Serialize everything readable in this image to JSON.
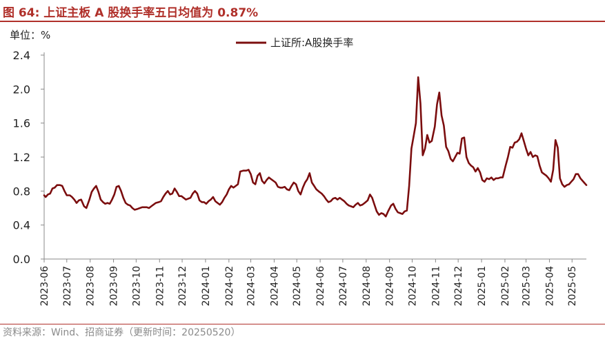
{
  "figure": {
    "title": "图 64:  上证主板 A 股换手率五日均值为 0.87%",
    "unit": "单位：%",
    "source": "资料来源：Wind、招商证券（更新时间：20250520）",
    "line_color": "#7b0d0e",
    "accent_color": "#b0302a"
  },
  "chart_data": {
    "type": "line",
    "title": "",
    "xlabel": "",
    "ylabel": "",
    "ylim": [
      0,
      2.4
    ],
    "yticks": [
      "0.0",
      "0.4",
      "0.8",
      "1.2",
      "1.6",
      "2.0",
      "2.4"
    ],
    "ytick_values": [
      0,
      0.4,
      0.8,
      1.2,
      1.6,
      2.0,
      2.4
    ],
    "xticks": [
      "2023-06",
      "2023-07",
      "2023-08",
      "2023-09",
      "2023-10",
      "2023-11",
      "2023-12",
      "2024-01",
      "2024-02",
      "2024-03",
      "2024-04",
      "2024-05",
      "2024-06",
      "2024-07",
      "2024-08",
      "2024-09",
      "2024-10",
      "2024-11",
      "2024-12",
      "2025-01",
      "2025-02",
      "2025-03",
      "2025-04",
      "2025-05"
    ],
    "xlim": [
      "2023-06-01",
      "2025-05-20"
    ],
    "grid": false,
    "legend_position": "top-center",
    "series": [
      {
        "name": "上证所:A股换手率",
        "points": [
          [
            "2023-06-01",
            0.75
          ],
          [
            "2023-06-03",
            0.73
          ],
          [
            "2023-06-06",
            0.76
          ],
          [
            "2023-06-09",
            0.77
          ],
          [
            "2023-06-12",
            0.83
          ],
          [
            "2023-06-15",
            0.84
          ],
          [
            "2023-06-18",
            0.87
          ],
          [
            "2023-06-22",
            0.87
          ],
          [
            "2023-06-25",
            0.86
          ],
          [
            "2023-06-28",
            0.8
          ],
          [
            "2023-07-01",
            0.75
          ],
          [
            "2023-07-05",
            0.75
          ],
          [
            "2023-07-08",
            0.73
          ],
          [
            "2023-07-11",
            0.7
          ],
          [
            "2023-07-14",
            0.66
          ],
          [
            "2023-07-17",
            0.69
          ],
          [
            "2023-07-20",
            0.7
          ],
          [
            "2023-07-24",
            0.62
          ],
          [
            "2023-07-27",
            0.6
          ],
          [
            "2023-07-31",
            0.7
          ],
          [
            "2023-08-03",
            0.79
          ],
          [
            "2023-08-06",
            0.83
          ],
          [
            "2023-08-09",
            0.86
          ],
          [
            "2023-08-12",
            0.79
          ],
          [
            "2023-08-15",
            0.7
          ],
          [
            "2023-08-18",
            0.67
          ],
          [
            "2023-08-21",
            0.65
          ],
          [
            "2023-08-24",
            0.66
          ],
          [
            "2023-08-27",
            0.65
          ],
          [
            "2023-08-30",
            0.7
          ],
          [
            "2023-09-02",
            0.76
          ],
          [
            "2023-09-05",
            0.85
          ],
          [
            "2023-09-08",
            0.86
          ],
          [
            "2023-09-11",
            0.8
          ],
          [
            "2023-09-14",
            0.72
          ],
          [
            "2023-09-17",
            0.66
          ],
          [
            "2023-09-20",
            0.64
          ],
          [
            "2023-09-23",
            0.63
          ],
          [
            "2023-09-26",
            0.6
          ],
          [
            "2023-09-29",
            0.58
          ],
          [
            "2023-10-03",
            0.59
          ],
          [
            "2023-10-06",
            0.6
          ],
          [
            "2023-10-09",
            0.61
          ],
          [
            "2023-10-12",
            0.61
          ],
          [
            "2023-10-15",
            0.61
          ],
          [
            "2023-10-18",
            0.6
          ],
          [
            "2023-10-21",
            0.62
          ],
          [
            "2023-10-24",
            0.64
          ],
          [
            "2023-10-27",
            0.66
          ],
          [
            "2023-10-31",
            0.67
          ],
          [
            "2023-11-03",
            0.68
          ],
          [
            "2023-11-06",
            0.73
          ],
          [
            "2023-11-09",
            0.77
          ],
          [
            "2023-11-12",
            0.8
          ],
          [
            "2023-11-15",
            0.76
          ],
          [
            "2023-11-18",
            0.77
          ],
          [
            "2023-11-21",
            0.83
          ],
          [
            "2023-11-24",
            0.79
          ],
          [
            "2023-11-27",
            0.74
          ],
          [
            "2023-11-30",
            0.74
          ],
          [
            "2023-12-03",
            0.72
          ],
          [
            "2023-12-06",
            0.7
          ],
          [
            "2023-12-09",
            0.71
          ],
          [
            "2023-12-12",
            0.72
          ],
          [
            "2023-12-15",
            0.77
          ],
          [
            "2023-12-18",
            0.8
          ],
          [
            "2023-12-21",
            0.77
          ],
          [
            "2023-12-24",
            0.69
          ],
          [
            "2023-12-27",
            0.67
          ],
          [
            "2023-12-30",
            0.67
          ],
          [
            "2024-01-02",
            0.65
          ],
          [
            "2024-01-05",
            0.68
          ],
          [
            "2024-01-08",
            0.7
          ],
          [
            "2024-01-11",
            0.73
          ],
          [
            "2024-01-14",
            0.68
          ],
          [
            "2024-01-17",
            0.66
          ],
          [
            "2024-01-20",
            0.64
          ],
          [
            "2024-01-23",
            0.67
          ],
          [
            "2024-01-26",
            0.72
          ],
          [
            "2024-01-29",
            0.76
          ],
          [
            "2024-02-01",
            0.82
          ],
          [
            "2024-02-04",
            0.86
          ],
          [
            "2024-02-07",
            0.84
          ],
          [
            "2024-02-10",
            0.86
          ],
          [
            "2024-02-13",
            0.88
          ],
          [
            "2024-02-16",
            1.03
          ],
          [
            "2024-02-20",
            1.04
          ],
          [
            "2024-02-24",
            1.04
          ],
          [
            "2024-02-27",
            1.05
          ],
          [
            "2024-03-01",
            1.0
          ],
          [
            "2024-03-04",
            0.9
          ],
          [
            "2024-03-07",
            0.88
          ],
          [
            "2024-03-10",
            0.98
          ],
          [
            "2024-03-13",
            1.01
          ],
          [
            "2024-03-16",
            0.92
          ],
          [
            "2024-03-19",
            0.89
          ],
          [
            "2024-03-22",
            0.93
          ],
          [
            "2024-03-25",
            0.96
          ],
          [
            "2024-03-28",
            0.94
          ],
          [
            "2024-03-31",
            0.92
          ],
          [
            "2024-04-03",
            0.9
          ],
          [
            "2024-04-06",
            0.85
          ],
          [
            "2024-04-09",
            0.84
          ],
          [
            "2024-04-12",
            0.84
          ],
          [
            "2024-04-15",
            0.85
          ],
          [
            "2024-04-18",
            0.82
          ],
          [
            "2024-04-21",
            0.81
          ],
          [
            "2024-04-24",
            0.86
          ],
          [
            "2024-04-27",
            0.9
          ],
          [
            "2024-04-30",
            0.88
          ],
          [
            "2024-05-03",
            0.8
          ],
          [
            "2024-05-06",
            0.76
          ],
          [
            "2024-05-09",
            0.84
          ],
          [
            "2024-05-12",
            0.9
          ],
          [
            "2024-05-15",
            0.94
          ],
          [
            "2024-05-18",
            1.01
          ],
          [
            "2024-05-21",
            0.9
          ],
          [
            "2024-05-24",
            0.86
          ],
          [
            "2024-05-27",
            0.82
          ],
          [
            "2024-05-31",
            0.79
          ],
          [
            "2024-06-03",
            0.77
          ],
          [
            "2024-06-06",
            0.74
          ],
          [
            "2024-06-09",
            0.7
          ],
          [
            "2024-06-12",
            0.67
          ],
          [
            "2024-06-15",
            0.68
          ],
          [
            "2024-06-18",
            0.71
          ],
          [
            "2024-06-21",
            0.72
          ],
          [
            "2024-06-24",
            0.7
          ],
          [
            "2024-06-27",
            0.72
          ],
          [
            "2024-06-30",
            0.7
          ],
          [
            "2024-07-03",
            0.68
          ],
          [
            "2024-07-06",
            0.65
          ],
          [
            "2024-07-09",
            0.63
          ],
          [
            "2024-07-12",
            0.62
          ],
          [
            "2024-07-15",
            0.61
          ],
          [
            "2024-07-18",
            0.64
          ],
          [
            "2024-07-21",
            0.66
          ],
          [
            "2024-07-24",
            0.63
          ],
          [
            "2024-07-27",
            0.64
          ],
          [
            "2024-07-30",
            0.66
          ],
          [
            "2024-08-03",
            0.69
          ],
          [
            "2024-08-06",
            0.76
          ],
          [
            "2024-08-09",
            0.72
          ],
          [
            "2024-08-12",
            0.64
          ],
          [
            "2024-08-15",
            0.56
          ],
          [
            "2024-08-18",
            0.52
          ],
          [
            "2024-08-21",
            0.54
          ],
          [
            "2024-08-24",
            0.53
          ],
          [
            "2024-08-27",
            0.5
          ],
          [
            "2024-08-30",
            0.56
          ],
          [
            "2024-09-03",
            0.63
          ],
          [
            "2024-09-06",
            0.65
          ],
          [
            "2024-09-09",
            0.59
          ],
          [
            "2024-09-12",
            0.55
          ],
          [
            "2024-09-15",
            0.54
          ],
          [
            "2024-09-18",
            0.53
          ],
          [
            "2024-09-21",
            0.56
          ],
          [
            "2024-09-24",
            0.57
          ],
          [
            "2024-09-27",
            0.86
          ],
          [
            "2024-09-30",
            1.3
          ],
          [
            "2024-10-03",
            1.45
          ],
          [
            "2024-10-06",
            1.6
          ],
          [
            "2024-10-09",
            2.14
          ],
          [
            "2024-10-12",
            1.83
          ],
          [
            "2024-10-15",
            1.22
          ],
          [
            "2024-10-18",
            1.3
          ],
          [
            "2024-10-21",
            1.46
          ],
          [
            "2024-10-24",
            1.37
          ],
          [
            "2024-10-27",
            1.39
          ],
          [
            "2024-10-31",
            1.56
          ],
          [
            "2024-11-03",
            1.82
          ],
          [
            "2024-11-06",
            1.96
          ],
          [
            "2024-11-09",
            1.69
          ],
          [
            "2024-11-12",
            1.57
          ],
          [
            "2024-11-15",
            1.32
          ],
          [
            "2024-11-18",
            1.27
          ],
          [
            "2024-11-21",
            1.18
          ],
          [
            "2024-11-24",
            1.15
          ],
          [
            "2024-11-27",
            1.2
          ],
          [
            "2024-11-30",
            1.25
          ],
          [
            "2024-12-03",
            1.24
          ],
          [
            "2024-12-06",
            1.42
          ],
          [
            "2024-12-09",
            1.43
          ],
          [
            "2024-12-12",
            1.2
          ],
          [
            "2024-12-15",
            1.13
          ],
          [
            "2024-12-18",
            1.1
          ],
          [
            "2024-12-21",
            1.08
          ],
          [
            "2024-12-24",
            1.03
          ],
          [
            "2024-12-27",
            1.07
          ],
          [
            "2024-12-30",
            1.02
          ],
          [
            "2025-01-02",
            0.93
          ],
          [
            "2025-01-05",
            0.91
          ],
          [
            "2025-01-08",
            0.95
          ],
          [
            "2025-01-11",
            0.94
          ],
          [
            "2025-01-14",
            0.96
          ],
          [
            "2025-01-17",
            0.93
          ],
          [
            "2025-01-20",
            0.95
          ],
          [
            "2025-01-23",
            0.95
          ],
          [
            "2025-01-26",
            0.96
          ],
          [
            "2025-01-29",
            0.96
          ],
          [
            "2025-02-02",
            1.1
          ],
          [
            "2025-02-05",
            1.2
          ],
          [
            "2025-02-08",
            1.32
          ],
          [
            "2025-02-11",
            1.31
          ],
          [
            "2025-02-14",
            1.37
          ],
          [
            "2025-02-17",
            1.38
          ],
          [
            "2025-02-20",
            1.41
          ],
          [
            "2025-02-23",
            1.48
          ],
          [
            "2025-02-26",
            1.39
          ],
          [
            "2025-03-01",
            1.3
          ],
          [
            "2025-03-04",
            1.22
          ],
          [
            "2025-03-07",
            1.26
          ],
          [
            "2025-03-10",
            1.2
          ],
          [
            "2025-03-13",
            1.22
          ],
          [
            "2025-03-16",
            1.21
          ],
          [
            "2025-03-19",
            1.1
          ],
          [
            "2025-03-22",
            1.02
          ],
          [
            "2025-03-25",
            1.0
          ],
          [
            "2025-03-28",
            0.98
          ],
          [
            "2025-03-31",
            0.95
          ],
          [
            "2025-04-03",
            0.91
          ],
          [
            "2025-04-06",
            1.05
          ],
          [
            "2025-04-09",
            1.4
          ],
          [
            "2025-04-12",
            1.31
          ],
          [
            "2025-04-15",
            0.95
          ],
          [
            "2025-04-18",
            0.88
          ],
          [
            "2025-04-21",
            0.85
          ],
          [
            "2025-04-24",
            0.87
          ],
          [
            "2025-04-27",
            0.88
          ],
          [
            "2025-04-30",
            0.91
          ],
          [
            "2025-05-03",
            0.94
          ],
          [
            "2025-05-06",
            1.0
          ],
          [
            "2025-05-09",
            1.0
          ],
          [
            "2025-05-12",
            0.95
          ],
          [
            "2025-05-15",
            0.92
          ],
          [
            "2025-05-18",
            0.89
          ],
          [
            "2025-05-20",
            0.87
          ]
        ]
      }
    ]
  }
}
